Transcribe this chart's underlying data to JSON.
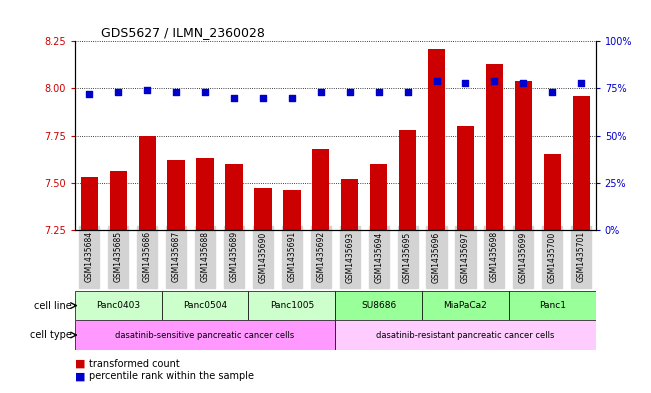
{
  "title": "GDS5627 / ILMN_2360028",
  "samples": [
    "GSM1435684",
    "GSM1435685",
    "GSM1435686",
    "GSM1435687",
    "GSM1435688",
    "GSM1435689",
    "GSM1435690",
    "GSM1435691",
    "GSM1435692",
    "GSM1435693",
    "GSM1435694",
    "GSM1435695",
    "GSM1435696",
    "GSM1435697",
    "GSM1435698",
    "GSM1435699",
    "GSM1435700",
    "GSM1435701"
  ],
  "bar_values": [
    7.53,
    7.56,
    7.75,
    7.62,
    7.63,
    7.6,
    7.47,
    7.46,
    7.68,
    7.52,
    7.6,
    7.78,
    8.21,
    7.8,
    8.13,
    8.04,
    7.65,
    7.96
  ],
  "dot_values": [
    72,
    73,
    74,
    73,
    73,
    70,
    70,
    70,
    73,
    73,
    73,
    73,
    79,
    78,
    79,
    78,
    73,
    78
  ],
  "ylim_left": [
    7.25,
    8.25
  ],
  "ylim_right": [
    0,
    100
  ],
  "yticks_left": [
    7.25,
    7.5,
    7.75,
    8.0,
    8.25
  ],
  "yticks_right": [
    0,
    25,
    50,
    75,
    100
  ],
  "ytick_labels_right": [
    "0%",
    "25%",
    "50%",
    "75%",
    "100%"
  ],
  "bar_color": "#cc0000",
  "dot_color": "#0000cc",
  "grid_color": "#000000",
  "cell_lines": [
    {
      "label": "Panc0403",
      "start": 0,
      "end": 2,
      "color": "#ccffcc"
    },
    {
      "label": "Panc0504",
      "start": 3,
      "end": 5,
      "color": "#ccffcc"
    },
    {
      "label": "Panc1005",
      "start": 6,
      "end": 8,
      "color": "#ccffcc"
    },
    {
      "label": "SU8686",
      "start": 9,
      "end": 11,
      "color": "#99ff99"
    },
    {
      "label": "MiaPaCa2",
      "start": 12,
      "end": 14,
      "color": "#99ff99"
    },
    {
      "label": "Panc1",
      "start": 15,
      "end": 17,
      "color": "#99ff99"
    }
  ],
  "cell_types": [
    {
      "label": "dasatinib-sensitive pancreatic cancer cells",
      "start": 0,
      "end": 8,
      "color": "#ff99ff"
    },
    {
      "label": "dasatinib-resistant pancreatic cancer cells",
      "start": 9,
      "end": 17,
      "color": "#ffccff"
    }
  ],
  "legend_bar_label": "transformed count",
  "legend_dot_label": "percentile rank within the sample",
  "cell_line_label": "cell line",
  "cell_type_label": "cell type",
  "bg_color": "#ffffff",
  "tick_color_left": "#cc0000",
  "tick_color_right": "#0000cc",
  "sample_bg_color": "#d3d3d3"
}
